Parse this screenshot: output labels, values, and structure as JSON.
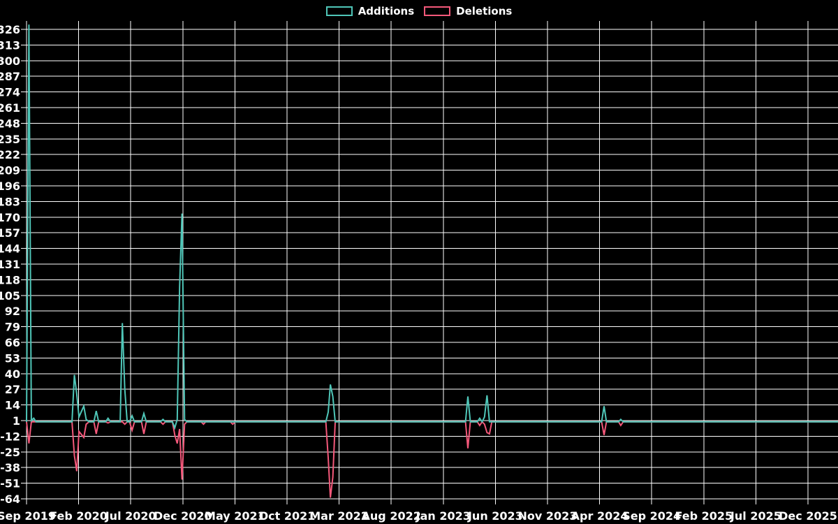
{
  "page": {
    "background": "#000000"
  },
  "chart_data": {
    "type": "line",
    "title": "",
    "xlabel": "",
    "ylabel": "",
    "legend_position": "top-center",
    "grid": true,
    "background": "#000000",
    "grid_color": "#ffffff",
    "text_color": "#ffffff",
    "ylim": [
      -64,
      326
    ],
    "y_ticks": [
      326,
      313,
      300,
      287,
      274,
      261,
      248,
      235,
      222,
      209,
      196,
      183,
      170,
      157,
      144,
      131,
      118,
      105,
      92,
      79,
      66,
      53,
      40,
      27,
      14,
      1,
      -12,
      -25,
      -38,
      -51,
      -64
    ],
    "x_tick_labels": [
      "Sep 2019",
      "Feb 2020",
      "Jul 2020",
      "Dec 2020",
      "May 2021",
      "Oct 2021",
      "Mar 2022",
      "Aug 2022",
      "Jan 2023",
      "Jun 2023",
      "Nov 2023",
      "Apr 2024",
      "Sep 2024",
      "Feb 2025",
      "Jul 2025",
      "Dec 2025"
    ],
    "x_months_per_tick": 5,
    "x_start": "2019-09-01",
    "series": [
      {
        "name": "Additions",
        "color": "#4fc6b8",
        "points": [
          [
            "2019-09-01",
            0
          ],
          [
            "2019-09-08",
            330
          ],
          [
            "2019-09-15",
            1
          ],
          [
            "2019-09-22",
            3
          ],
          [
            "2019-09-29",
            0
          ],
          [
            "2020-01-12",
            0
          ],
          [
            "2020-01-19",
            39
          ],
          [
            "2020-01-26",
            23
          ],
          [
            "2020-02-02",
            4
          ],
          [
            "2020-02-16",
            13
          ],
          [
            "2020-02-23",
            2
          ],
          [
            "2020-03-01",
            0
          ],
          [
            "2020-03-15",
            0
          ],
          [
            "2020-03-22",
            9
          ],
          [
            "2020-03-29",
            0
          ],
          [
            "2020-04-19",
            0
          ],
          [
            "2020-04-26",
            3
          ],
          [
            "2020-05-03",
            0
          ],
          [
            "2020-05-31",
            0
          ],
          [
            "2020-06-07",
            82
          ],
          [
            "2020-06-14",
            27
          ],
          [
            "2020-06-21",
            0
          ],
          [
            "2020-06-28",
            0
          ],
          [
            "2020-07-05",
            5
          ],
          [
            "2020-07-12",
            0
          ],
          [
            "2020-08-02",
            0
          ],
          [
            "2020-08-09",
            7
          ],
          [
            "2020-08-16",
            0
          ],
          [
            "2020-09-27",
            0
          ],
          [
            "2020-10-04",
            2
          ],
          [
            "2020-10-11",
            0
          ],
          [
            "2020-11-01",
            0
          ],
          [
            "2020-11-08",
            -5
          ],
          [
            "2020-11-15",
            2
          ],
          [
            "2020-11-22",
            112
          ],
          [
            "2020-11-29",
            173
          ],
          [
            "2020-12-06",
            2
          ],
          [
            "2020-12-13",
            0
          ],
          [
            "2022-01-23",
            0
          ],
          [
            "2022-01-30",
            8
          ],
          [
            "2022-02-06",
            31
          ],
          [
            "2022-02-13",
            21
          ],
          [
            "2022-02-20",
            0
          ],
          [
            "2023-03-05",
            0
          ],
          [
            "2023-03-12",
            21
          ],
          [
            "2023-03-19",
            0
          ],
          [
            "2023-04-09",
            0
          ],
          [
            "2023-04-16",
            3
          ],
          [
            "2023-04-23",
            0
          ],
          [
            "2023-04-30",
            4
          ],
          [
            "2023-05-07",
            22
          ],
          [
            "2023-05-14",
            0
          ],
          [
            "2024-04-07",
            0
          ],
          [
            "2024-04-14",
            13
          ],
          [
            "2024-04-21",
            0
          ],
          [
            "2024-05-26",
            0
          ],
          [
            "2024-06-02",
            2
          ],
          [
            "2024-06-09",
            0
          ],
          [
            "2026-03-01",
            0
          ]
        ]
      },
      {
        "name": "Deletions",
        "color": "#f4587a",
        "points": [
          [
            "2019-09-01",
            0
          ],
          [
            "2019-09-08",
            -18
          ],
          [
            "2019-09-15",
            0
          ],
          [
            "2020-01-12",
            0
          ],
          [
            "2020-01-19",
            -28
          ],
          [
            "2020-01-26",
            -41
          ],
          [
            "2020-02-02",
            -8
          ],
          [
            "2020-02-16",
            -13
          ],
          [
            "2020-02-23",
            -2
          ],
          [
            "2020-03-01",
            0
          ],
          [
            "2020-03-15",
            0
          ],
          [
            "2020-03-22",
            -10
          ],
          [
            "2020-03-29",
            0
          ],
          [
            "2020-04-19",
            0
          ],
          [
            "2020-04-26",
            -1
          ],
          [
            "2020-05-03",
            0
          ],
          [
            "2020-06-07",
            0
          ],
          [
            "2020-06-14",
            -2
          ],
          [
            "2020-06-21",
            0
          ],
          [
            "2020-06-28",
            0
          ],
          [
            "2020-07-05",
            -7
          ],
          [
            "2020-07-12",
            0
          ],
          [
            "2020-08-02",
            0
          ],
          [
            "2020-08-09",
            -10
          ],
          [
            "2020-08-16",
            0
          ],
          [
            "2020-09-27",
            0
          ],
          [
            "2020-10-04",
            -2
          ],
          [
            "2020-10-11",
            0
          ],
          [
            "2020-11-01",
            0
          ],
          [
            "2020-11-08",
            -11
          ],
          [
            "2020-11-15",
            -18
          ],
          [
            "2020-11-22",
            -6
          ],
          [
            "2020-11-29",
            -48
          ],
          [
            "2020-12-06",
            -2
          ],
          [
            "2020-12-13",
            0
          ],
          [
            "2021-01-24",
            0
          ],
          [
            "2021-01-31",
            -2
          ],
          [
            "2021-02-07",
            0
          ],
          [
            "2021-04-18",
            0
          ],
          [
            "2021-04-25",
            -2
          ],
          [
            "2021-05-02",
            0
          ],
          [
            "2022-01-23",
            0
          ],
          [
            "2022-01-30",
            -30
          ],
          [
            "2022-02-06",
            -63
          ],
          [
            "2022-02-13",
            -46
          ],
          [
            "2022-02-20",
            0
          ],
          [
            "2023-03-05",
            0
          ],
          [
            "2023-03-12",
            -22
          ],
          [
            "2023-03-19",
            0
          ],
          [
            "2023-04-09",
            0
          ],
          [
            "2023-04-16",
            -3
          ],
          [
            "2023-04-23",
            0
          ],
          [
            "2023-04-30",
            -2
          ],
          [
            "2023-05-07",
            -9
          ],
          [
            "2023-05-14",
            -10
          ],
          [
            "2023-05-21",
            0
          ],
          [
            "2024-04-07",
            0
          ],
          [
            "2024-04-14",
            -11
          ],
          [
            "2024-04-21",
            0
          ],
          [
            "2024-05-26",
            0
          ],
          [
            "2024-06-02",
            -3
          ],
          [
            "2024-06-09",
            0
          ],
          [
            "2026-03-01",
            0
          ]
        ]
      }
    ]
  }
}
